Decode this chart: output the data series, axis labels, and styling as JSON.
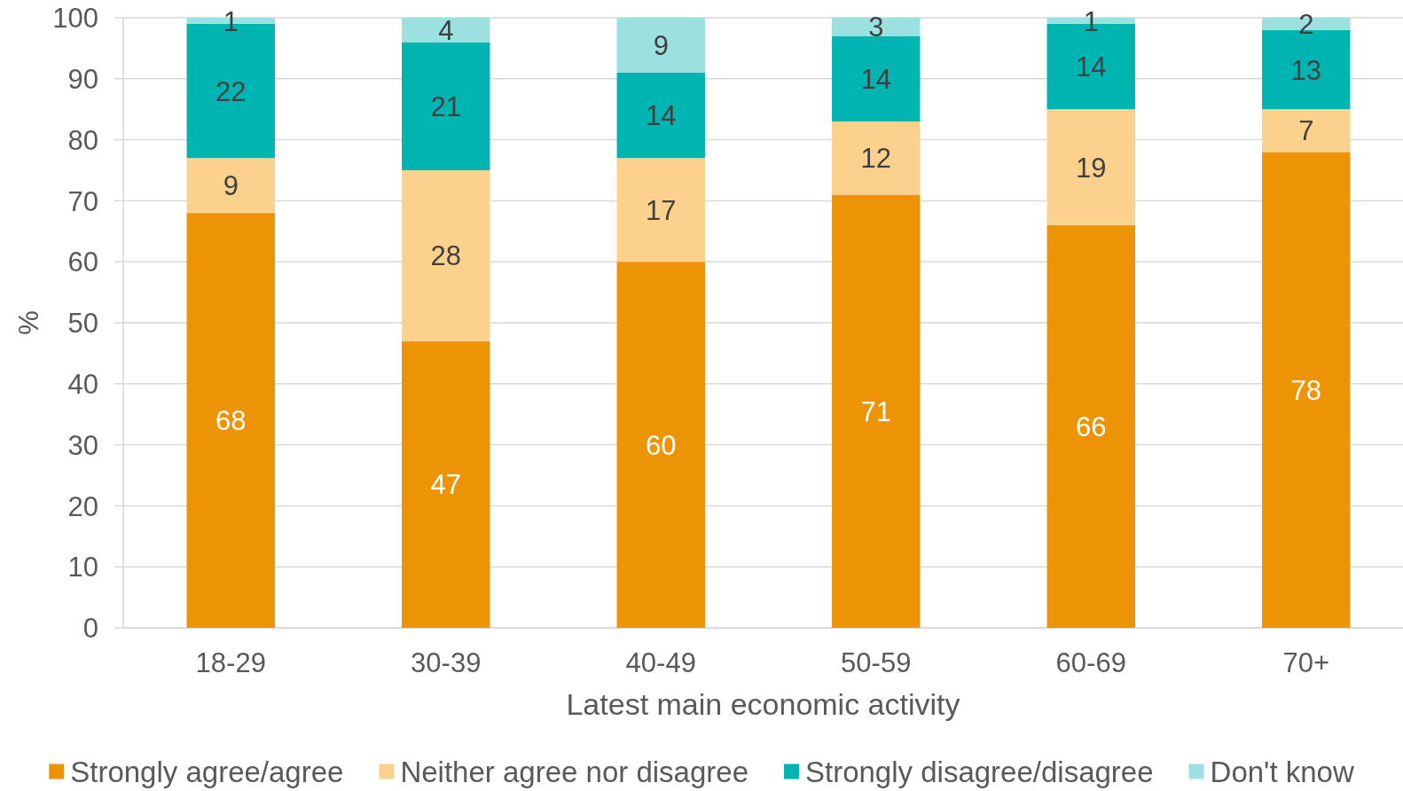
{
  "chart_data": {
    "type": "bar",
    "stacked": true,
    "xlabel": "Latest main economic activity",
    "ylabel": "%",
    "categories": [
      "18-29",
      "30-39",
      "40-49",
      "50-59",
      "60-69",
      "70+"
    ],
    "series": [
      {
        "name": "Strongly agree/agree",
        "color": "#ed9406",
        "values": [
          68,
          47,
          60,
          71,
          66,
          78
        ]
      },
      {
        "name": "Neither agree nor disagree",
        "color": "#fcd18e",
        "values": [
          9,
          28,
          17,
          12,
          19,
          7
        ]
      },
      {
        "name": "Strongly disagree/disagree",
        "color": "#00b5b1",
        "values": [
          22,
          21,
          14,
          14,
          14,
          13
        ]
      },
      {
        "name": "Don't know",
        "color": "#9ce0e0",
        "values": [
          1,
          4,
          9,
          3,
          1,
          2
        ]
      }
    ],
    "ylim": [
      0,
      100
    ],
    "yticks": [
      0,
      10,
      20,
      30,
      40,
      50,
      60,
      70,
      80,
      90,
      100
    ],
    "grid": "y",
    "legend": "bottom",
    "data_labels": true
  }
}
